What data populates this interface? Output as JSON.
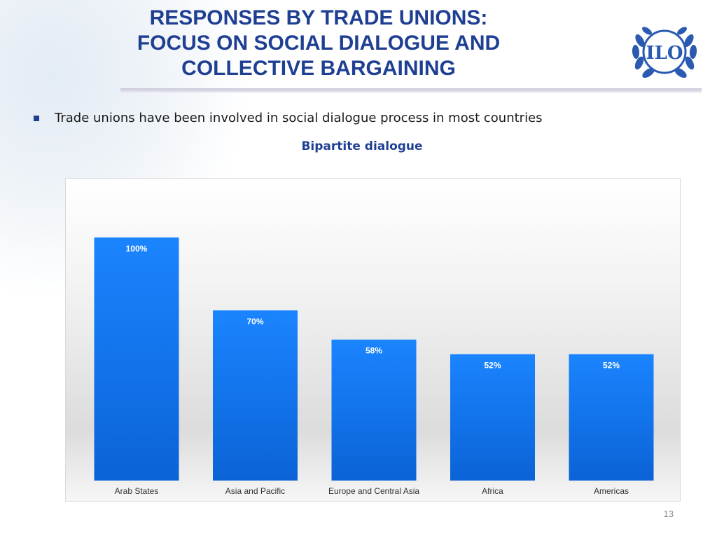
{
  "slide": {
    "title_lines": [
      "RESPONSES BY TRADE UNIONS:",
      "FOCUS ON SOCIAL DIALOGUE AND",
      "COLLECTIVE BARGAINING"
    ],
    "bullet": "Trade unions have been involved in social dialogue process in most countries",
    "page_number": "13",
    "logo_text": "ILO"
  },
  "colors": {
    "title": "#1f3f93",
    "bar": "#1a7ef5"
  },
  "chart_data": {
    "type": "bar",
    "title": "Bipartite dialogue",
    "categories": [
      "Arab States",
      "Asia and Pacific",
      "Europe and Central Asia",
      "Africa",
      "Americas"
    ],
    "values": [
      100,
      70,
      58,
      52,
      52
    ],
    "value_labels": [
      "100%",
      "70%",
      "58%",
      "52%",
      "52%"
    ],
    "ylim": [
      0,
      100
    ],
    "grid": false,
    "legend": "none"
  }
}
